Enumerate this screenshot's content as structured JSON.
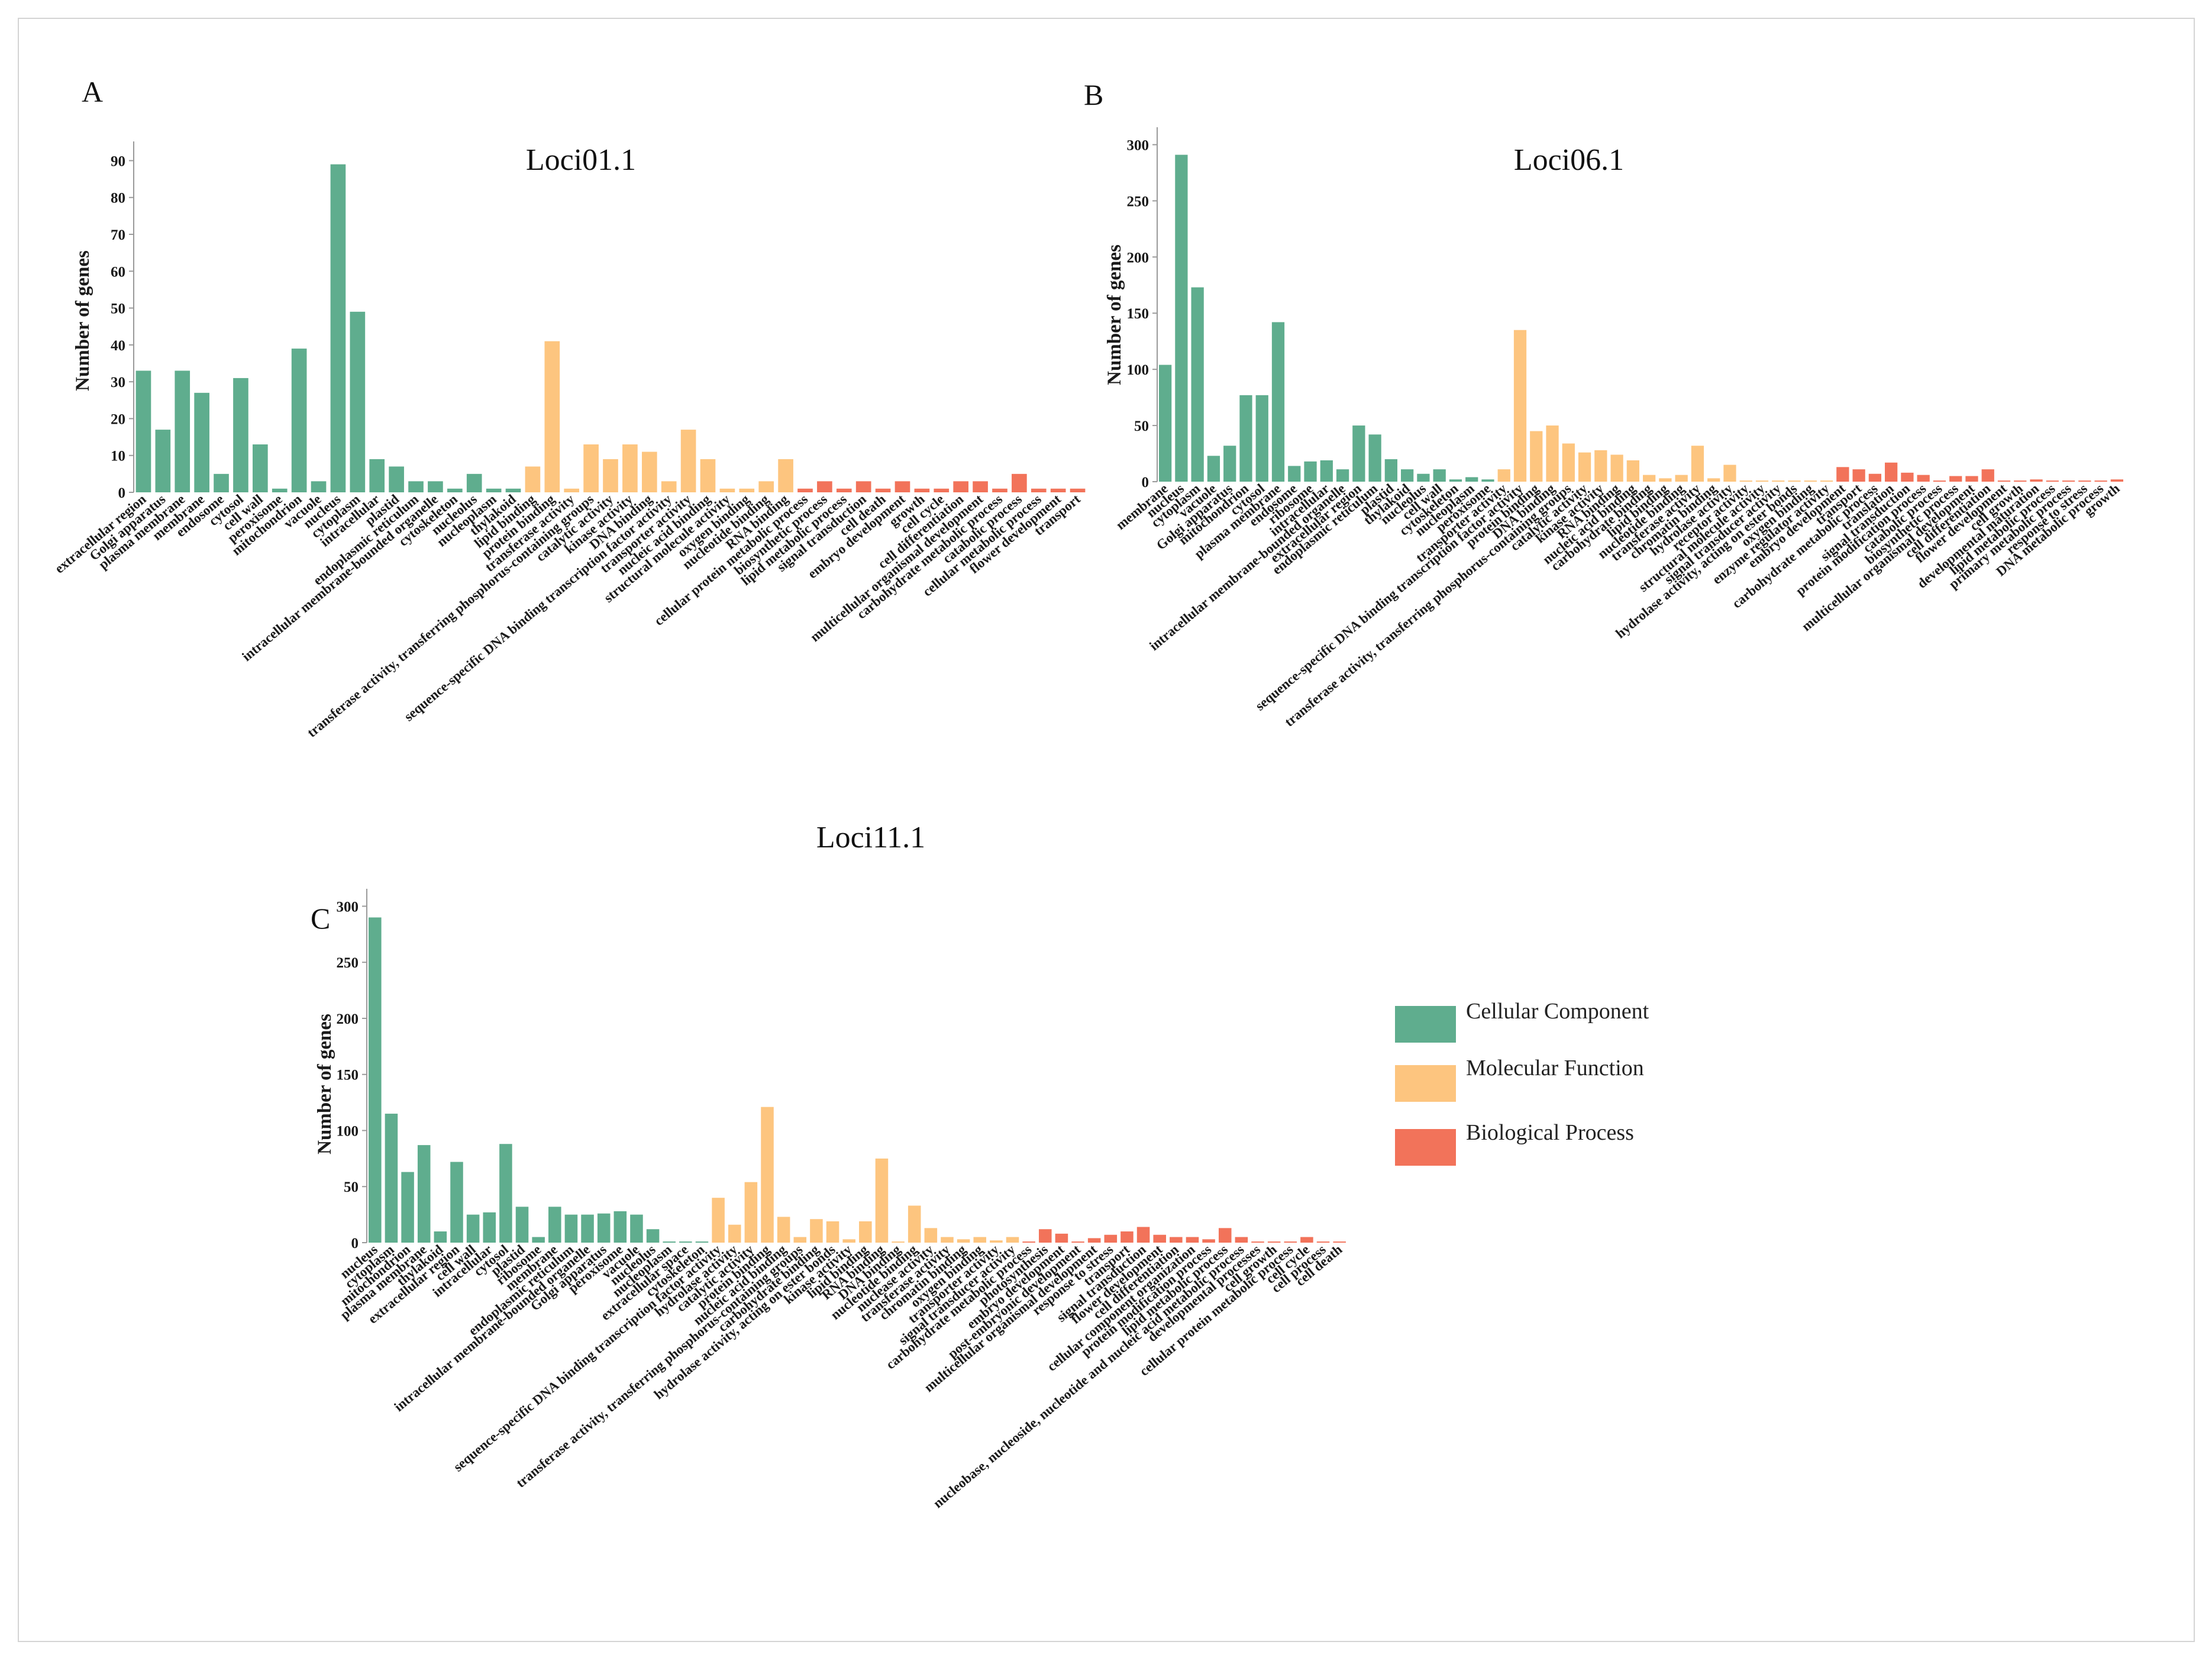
{
  "colors": {
    "cellular_component": "#5fad8e",
    "molecular_function": "#fdc57f",
    "biological_process": "#f2735a"
  },
  "legend": {
    "cellular_component": "Cellular Component",
    "molecular_function": "Molecular Function",
    "biological_process": "Biological Process"
  },
  "chart_data": [
    {
      "type": "bar",
      "letter": "A",
      "title": "Loci01.1",
      "ylabel": "Number of genes",
      "ylim": [
        0,
        92
      ],
      "yticks": [
        0,
        10,
        20,
        30,
        40,
        50,
        60,
        70,
        80,
        90
      ],
      "categories": [
        "extracellular region",
        "Golgi apparatus",
        "plasma membrane",
        "membrane",
        "endosome",
        "cytosol",
        "cell wall",
        "peroxisome",
        "mitochondrion",
        "vacuole",
        "nucleus",
        "cytoplasm",
        "intracellular",
        "plastid",
        "endoplasmic reticulum",
        "intracellular membrane-bounded organelle",
        "cytoskeleton",
        "nucleolus",
        "nucleoplasm",
        "thylakoid",
        "lipid binding",
        "protein binding",
        "transferase activity",
        "transferase activity, transferring phosphorus-containing groups",
        "catalytic activity",
        "kinase activity",
        "DNA binding",
        "sequence-specific DNA binding transcription factor activity",
        "transporter activity",
        "nucleic acid binding",
        "structural molecule activity",
        "oxygen binding",
        "nucleotide binding",
        "RNA binding",
        "cellular protein metabolic process",
        "biosynthetic process",
        "lipid metabolic process",
        "signal transduction",
        "cell death",
        "embryo development",
        "growth",
        "cell cycle",
        "cell differentiation",
        "multicellular organismal development",
        "carbohydrate metabolic process",
        "catabolic process",
        "cellular metabolic process",
        "flower development",
        "transport"
      ],
      "values": [
        33,
        17,
        33,
        27,
        5,
        31,
        13,
        1,
        39,
        3,
        89,
        49,
        9,
        7,
        3,
        3,
        1,
        5,
        1,
        1,
        7,
        41,
        1,
        13,
        9,
        13,
        11,
        3,
        17,
        9,
        1,
        1,
        3,
        9,
        1,
        3,
        1,
        3,
        1,
        3,
        1,
        1,
        3,
        3,
        1,
        5,
        1,
        1,
        1
      ],
      "groups": [
        "CC",
        "CC",
        "CC",
        "CC",
        "CC",
        "CC",
        "CC",
        "CC",
        "CC",
        "CC",
        "CC",
        "CC",
        "CC",
        "CC",
        "CC",
        "CC",
        "CC",
        "CC",
        "CC",
        "CC",
        "MF",
        "MF",
        "MF",
        "MF",
        "MF",
        "MF",
        "MF",
        "MF",
        "MF",
        "MF",
        "MF",
        "MF",
        "MF",
        "MF",
        "BP",
        "BP",
        "BP",
        "BP",
        "BP",
        "BP",
        "BP",
        "BP",
        "BP",
        "BP",
        "BP",
        "BP",
        "BP",
        "BP",
        "BP"
      ]
    },
    {
      "type": "bar",
      "letter": "B",
      "title": "Loci06.1",
      "ylabel": "Number of genes",
      "ylim": [
        0,
        305
      ],
      "yticks": [
        0,
        50,
        100,
        150,
        200,
        250,
        300
      ],
      "categories": [
        "membrane",
        "nucleus",
        "cytoplasm",
        "vacuole",
        "Golgi apparatus",
        "mitochondrion",
        "cytosol",
        "plasma membrane",
        "endosome",
        "ribosome",
        "intracellular",
        "intracellular membrane-bounded organelle",
        "extracellular region",
        "endoplasmic reticulum",
        "plastid",
        "thylakoid",
        "nucleolus",
        "cell wall",
        "cytoskeleton",
        "nucleoplasm",
        "peroxisome",
        "transporter activity",
        "sequence-specific DNA binding transcription factor activity",
        "protein binding",
        "DNA binding",
        "transferase activity, transferring phosphorus-containing groups",
        "catalytic activity",
        "kinase activity",
        "RNA binding",
        "nucleic acid binding",
        "carbohydrate binding",
        "lipid binding",
        "nucleotide binding",
        "transferase activity",
        "chromatin binding",
        "hydrolase activity",
        "receptor activity",
        "structural molecule activity",
        "signal transducer activity",
        "hydrolase activity, acting on ester bonds",
        "oxygen binding",
        "enzyme regulator activity",
        "embryo development",
        "transport",
        "carbohydrate metabolic process",
        "translation",
        "signal transduction",
        "protein modification process",
        "catabolic process",
        "biosynthetic process",
        "multicellular organismal development",
        "cell differentiation",
        "flower development",
        "cell growth",
        "developmental maturation",
        "lipid metabolic process",
        "primary metabolic process",
        "response to stress",
        "DNA metabolic process",
        "growth"
      ],
      "values": [
        104,
        291,
        173,
        23,
        32,
        77,
        77,
        142,
        14,
        18,
        19,
        11,
        50,
        42,
        20,
        11,
        7,
        11,
        2,
        4,
        2,
        11,
        135,
        45,
        50,
        34,
        26,
        28,
        24,
        19,
        6,
        3,
        6,
        32,
        3,
        15,
        1,
        1,
        1,
        1,
        1,
        1,
        13,
        11,
        7,
        17,
        8,
        6,
        1,
        5,
        5,
        11,
        1,
        1,
        2,
        1,
        1,
        1,
        1,
        2
      ],
      "groups": [
        "CC",
        "CC",
        "CC",
        "CC",
        "CC",
        "CC",
        "CC",
        "CC",
        "CC",
        "CC",
        "CC",
        "CC",
        "CC",
        "CC",
        "CC",
        "CC",
        "CC",
        "CC",
        "CC",
        "CC",
        "CC",
        "MF",
        "MF",
        "MF",
        "MF",
        "MF",
        "MF",
        "MF",
        "MF",
        "MF",
        "MF",
        "MF",
        "MF",
        "MF",
        "MF",
        "MF",
        "MF",
        "MF",
        "MF",
        "MF",
        "MF",
        "MF",
        "BP",
        "BP",
        "BP",
        "BP",
        "BP",
        "BP",
        "BP",
        "BP",
        "BP",
        "BP",
        "BP",
        "BP",
        "BP",
        "BP",
        "BP",
        "BP",
        "BP",
        "BP"
      ]
    },
    {
      "type": "bar",
      "letter": "C",
      "title": "Loci11.1",
      "ylabel": "Number of genes",
      "ylim": [
        0,
        305
      ],
      "yticks": [
        0,
        50,
        100,
        150,
        200,
        250,
        300
      ],
      "categories": [
        "nucleus",
        "cytoplasm",
        "mitochondrion",
        "plasma membrane",
        "thylakoid",
        "extracellular region",
        "cell wall",
        "intracellular",
        "cytosol",
        "plastid",
        "ribosome",
        "membrane",
        "endoplasmic reticulum",
        "intracellular membrane-bounded organelle",
        "Golgi apparatus",
        "peroxisome",
        "vacuole",
        "nucleolus",
        "nucleoplasm",
        "extracellular space",
        "cytoskeleton",
        "sequence-specific DNA binding transcription factor activity",
        "hydrolase activity",
        "catalytic activity",
        "protein binding",
        "nucleic acid binding",
        "transferase activity, transferring phosphorus-containing groups",
        "carbohydrate binding",
        "hydrolase activity, acting on ester bonds",
        "kinase activity",
        "lipid binding",
        "RNA binding",
        "DNA binding",
        "nucleotide binding",
        "nuclease activity",
        "transferase activity",
        "chromatin binding",
        "oxygen binding",
        "transporter activity",
        "signal transducer activity",
        "carbohydrate metabolic process",
        "photosynthesis",
        "embryo development",
        "post-embryonic development",
        "multicellular organismal development",
        "response to stress",
        "transport",
        "signal transduction",
        "flower development",
        "cell differentiation",
        "cellular component organization",
        "protein modification process",
        "lipid metabolic process",
        "nucleobase, nucleoside, nucleotide and nucleic acid metabolic process",
        "developmental processes",
        "cell growth",
        "cellular protein metabolic process",
        "cell cycle",
        "cell process",
        "cell death"
      ],
      "values": [
        290,
        115,
        63,
        87,
        10,
        72,
        25,
        27,
        88,
        32,
        5,
        32,
        25,
        25,
        26,
        28,
        25,
        12,
        1,
        1,
        1,
        40,
        16,
        54,
        121,
        23,
        5,
        21,
        19,
        3,
        19,
        75,
        1,
        33,
        13,
        5,
        3,
        5,
        2,
        5,
        1,
        12,
        8,
        1,
        4,
        7,
        10,
        14,
        7,
        5,
        5,
        3,
        13,
        5,
        1,
        1,
        1,
        5,
        1,
        1
      ],
      "groups": [
        "CC",
        "CC",
        "CC",
        "CC",
        "CC",
        "CC",
        "CC",
        "CC",
        "CC",
        "CC",
        "CC",
        "CC",
        "CC",
        "CC",
        "CC",
        "CC",
        "CC",
        "CC",
        "CC",
        "CC",
        "CC",
        "MF",
        "MF",
        "MF",
        "MF",
        "MF",
        "MF",
        "MF",
        "MF",
        "MF",
        "MF",
        "MF",
        "MF",
        "MF",
        "MF",
        "MF",
        "MF",
        "MF",
        "MF",
        "MF",
        "BP",
        "BP",
        "BP",
        "BP",
        "BP",
        "BP",
        "BP",
        "BP",
        "BP",
        "BP",
        "BP",
        "BP",
        "BP",
        "BP",
        "BP",
        "BP",
        "BP",
        "BP",
        "BP",
        "BP"
      ]
    }
  ]
}
